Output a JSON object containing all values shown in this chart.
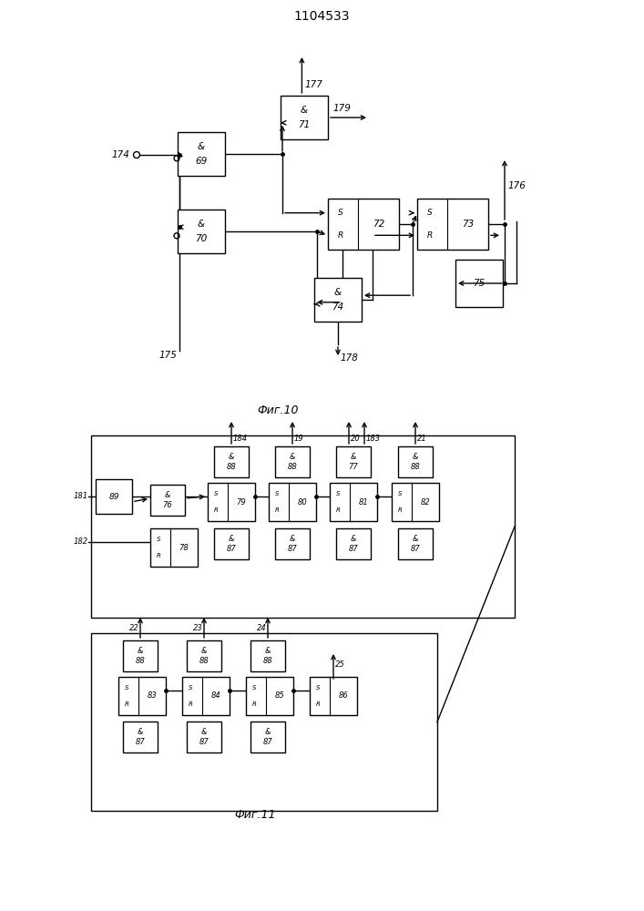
{
  "title": "1104533",
  "fig10_label": "Фиг.10",
  "fig11_label": "Фиг.11",
  "bg": "#ffffff",
  "lc": "#000000"
}
